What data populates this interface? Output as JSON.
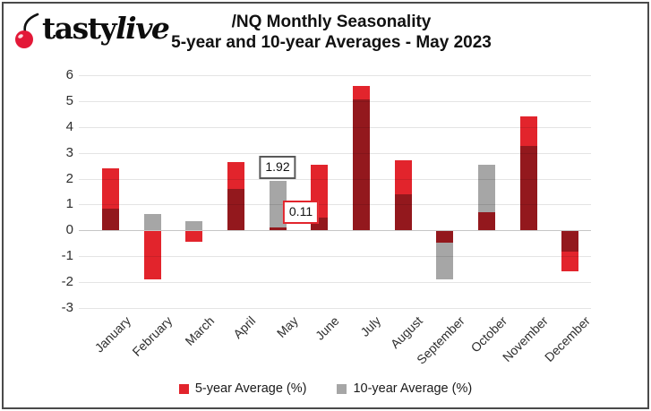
{
  "logo": {
    "text_regular": "tasty",
    "text_italic": "live",
    "cherry_color": "#e31837",
    "stem_color": "#111111"
  },
  "title": {
    "line1": "/NQ Monthly Seasonality",
    "line2": "5-year and 10-year Averages - May 2023"
  },
  "chart_data": {
    "type": "bar",
    "subtype": "overlapping",
    "categories": [
      "January",
      "February",
      "March",
      "April",
      "May",
      "June",
      "July",
      "August",
      "September",
      "October",
      "November",
      "December"
    ],
    "series": [
      {
        "name": "5-year Average (%)",
        "color": "#e2242c",
        "values": [
          2.4,
          -1.85,
          -0.4,
          2.65,
          0.11,
          2.55,
          5.6,
          2.7,
          -0.45,
          0.72,
          4.4,
          -1.55
        ]
      },
      {
        "name": "10-year Average (%)",
        "color": "#a6a6a6",
        "values": [
          0.85,
          0.62,
          0.35,
          1.6,
          1.92,
          0.5,
          5.05,
          1.4,
          -1.87,
          2.55,
          3.25,
          -0.77
        ]
      }
    ],
    "ylim": [
      -3,
      6
    ],
    "ytick_step": 1,
    "grid": true,
    "legend_position": "bottom",
    "annotations": [
      {
        "text": "1.92",
        "month_index": 4,
        "value": 1.92,
        "border_color": "#595959",
        "dx": 0,
        "gap": 2
      },
      {
        "text": "0.11",
        "month_index": 4,
        "value": 0.11,
        "border_color": "#e2242c",
        "dx": 26,
        "gap": 4
      }
    ]
  }
}
